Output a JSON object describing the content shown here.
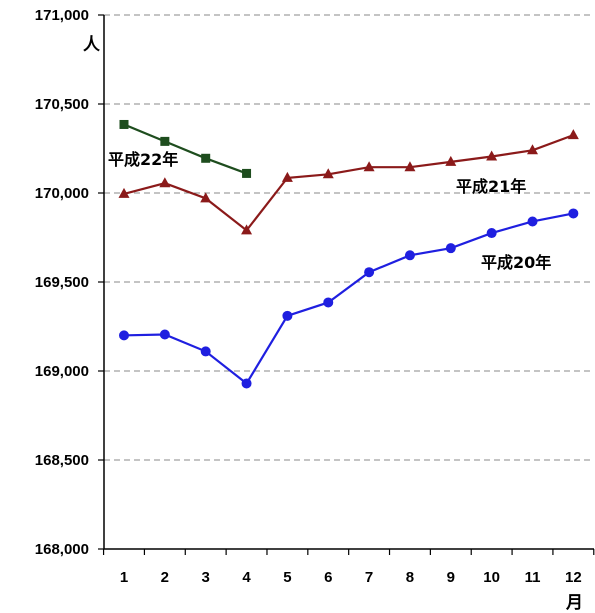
{
  "chart_data": {
    "type": "line",
    "title": "",
    "y_unit": "人",
    "x_unit": "月",
    "ylim": [
      168000,
      171000
    ],
    "y_ticks": [
      168000,
      168500,
      169000,
      169500,
      170000,
      170500,
      171000
    ],
    "y_tick_labels": [
      "168,000",
      "168,500",
      "169,000",
      "169,500",
      "170,000",
      "170,500",
      "171,000"
    ],
    "categories": [
      "1",
      "2",
      "3",
      "4",
      "5",
      "6",
      "7",
      "8",
      "9",
      "10",
      "11",
      "12"
    ],
    "grid": "horizontal-dashed",
    "series": [
      {
        "name": "平成22年",
        "color": "#1e4d1e",
        "marker": "square",
        "values": [
          170385,
          170290,
          170195,
          170110,
          null,
          null,
          null,
          null,
          null,
          null,
          null,
          null
        ]
      },
      {
        "name": "平成21年",
        "color": "#8b1a1a",
        "marker": "triangle",
        "values": [
          169995,
          170055,
          169970,
          169790,
          170085,
          170105,
          170145,
          170145,
          170175,
          170205,
          170240,
          170325
        ]
      },
      {
        "name": "平成20年",
        "color": "#1f1fe0",
        "marker": "circle",
        "values": [
          169200,
          169205,
          169110,
          168930,
          169310,
          169385,
          169555,
          169650,
          169690,
          169775,
          169840,
          169885
        ]
      }
    ]
  }
}
